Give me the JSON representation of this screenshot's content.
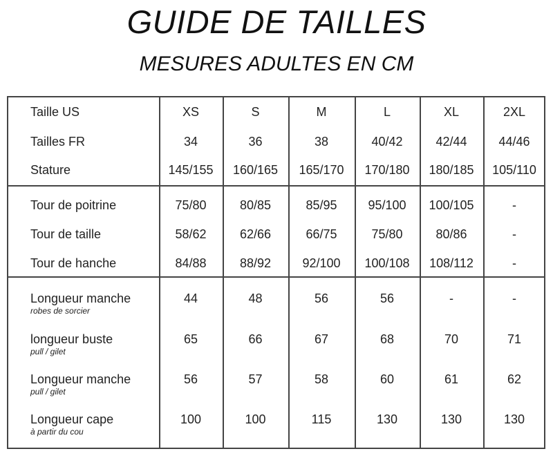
{
  "title": "GUIDE DE TAILLES",
  "subtitle": "MESURES ADULTES EN CM",
  "table": {
    "sections": [
      {
        "rows": [
          {
            "label": "Taille US",
            "note": "",
            "values": [
              "XS",
              "S",
              "M",
              "L",
              "XL",
              "2XL"
            ]
          },
          {
            "label": "Tailles FR",
            "note": "",
            "values": [
              "34",
              "36",
              "38",
              "40/42",
              "42/44",
              "44/46"
            ]
          },
          {
            "label": "Stature",
            "note": "",
            "values": [
              "145/155",
              "160/165",
              "165/170",
              "170/180",
              "180/185",
              "105/110"
            ]
          }
        ]
      },
      {
        "rows": [
          {
            "label": "Tour de poitrine",
            "note": "",
            "values": [
              "75/80",
              "80/85",
              "85/95",
              "95/100",
              "100/105",
              "-"
            ]
          },
          {
            "label": "Tour de taille",
            "note": "",
            "values": [
              "58/62",
              "62/66",
              "66/75",
              "75/80",
              "80/86",
              "-"
            ]
          },
          {
            "label": "Tour de hanche",
            "note": "",
            "values": [
              "84/88",
              "88/92",
              "92/100",
              "100/108",
              "108/112",
              "-"
            ]
          }
        ]
      },
      {
        "rows": [
          {
            "label": "Longueur manche",
            "note": "robes de sorcier",
            "values": [
              "44",
              "48",
              "56",
              "56",
              "-",
              "-"
            ]
          },
          {
            "label": "longueur buste",
            "note": "pull / gilet",
            "values": [
              "65",
              "66",
              "67",
              "68",
              "70",
              "71"
            ]
          },
          {
            "label": "Longueur manche",
            "note": "pull / gilet",
            "values": [
              "56",
              "57",
              "58",
              "60",
              "61",
              "62"
            ]
          },
          {
            "label": "Longueur cape",
            "note": "à partir du cou",
            "values": [
              "100",
              "100",
              "115",
              "130",
              "130",
              "130"
            ]
          }
        ]
      }
    ]
  }
}
